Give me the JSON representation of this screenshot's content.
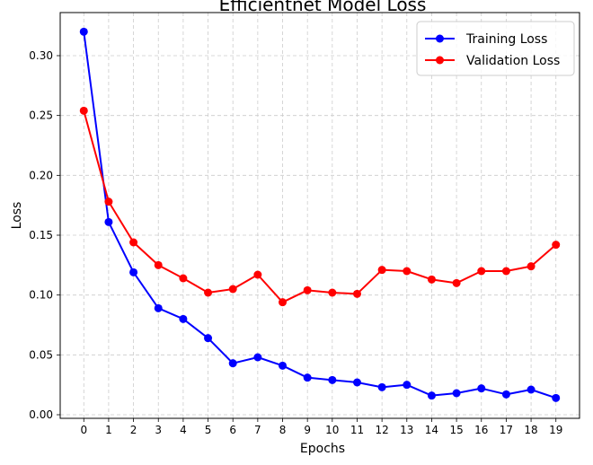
{
  "chart_data": {
    "type": "line",
    "title": "Efficientnet Model Loss",
    "xlabel": "Epochs",
    "ylabel": "Loss",
    "categories": [
      0,
      1,
      2,
      3,
      4,
      5,
      6,
      7,
      8,
      9,
      10,
      11,
      12,
      13,
      14,
      15,
      16,
      17,
      18,
      19
    ],
    "xlim": [
      -0.95,
      19.95
    ],
    "ylim": [
      -0.003,
      0.336
    ],
    "yticks": [
      0.0,
      0.05,
      0.1,
      0.15,
      0.2,
      0.25,
      0.3
    ],
    "ytick_labels": [
      "0.00",
      "0.05",
      "0.10",
      "0.15",
      "0.20",
      "0.25",
      "0.30"
    ],
    "grid": true,
    "legend_position": "top-right",
    "series": [
      {
        "name": "Training Loss",
        "color": "#0000ff",
        "values": [
          0.32,
          0.161,
          0.119,
          0.089,
          0.08,
          0.064,
          0.043,
          0.048,
          0.041,
          0.031,
          0.029,
          0.027,
          0.023,
          0.025,
          0.016,
          0.018,
          0.022,
          0.017,
          0.021,
          0.014
        ]
      },
      {
        "name": "Validation Loss",
        "color": "#ff0000",
        "values": [
          0.254,
          0.178,
          0.144,
          0.125,
          0.114,
          0.102,
          0.105,
          0.117,
          0.094,
          0.104,
          0.102,
          0.101,
          0.121,
          0.12,
          0.113,
          0.11,
          0.12,
          0.12,
          0.124,
          0.142
        ]
      }
    ]
  }
}
